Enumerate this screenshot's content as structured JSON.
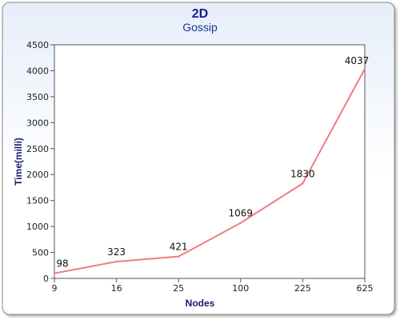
{
  "chart_data": {
    "type": "line",
    "title": "2D",
    "subtitle": "Gossip",
    "xlabel": "Nodes",
    "ylabel": "Time(milli)",
    "categories": [
      "9",
      "16",
      "25",
      "100",
      "225",
      "625"
    ],
    "series": [
      {
        "values": [
          98,
          323,
          421,
          1069,
          1830,
          4037
        ],
        "labels": [
          "98",
          "323",
          "421",
          "1069",
          "1830",
          "4037"
        ]
      }
    ],
    "ylim": [
      0,
      4500
    ],
    "yticks": [
      "0",
      "500",
      "1000",
      "1500",
      "2000",
      "2500",
      "3000",
      "3500",
      "4000",
      "4500"
    ],
    "grid": false,
    "legend": "none"
  },
  "colors": {
    "line": "#f07c82",
    "title": "#1a1a8c",
    "subtitle": "#1a3a8c",
    "axis_label": "#1a1a6e",
    "frame_gradient_top": "#e6eefa",
    "frame_gradient_bottom": "#ffffff"
  }
}
